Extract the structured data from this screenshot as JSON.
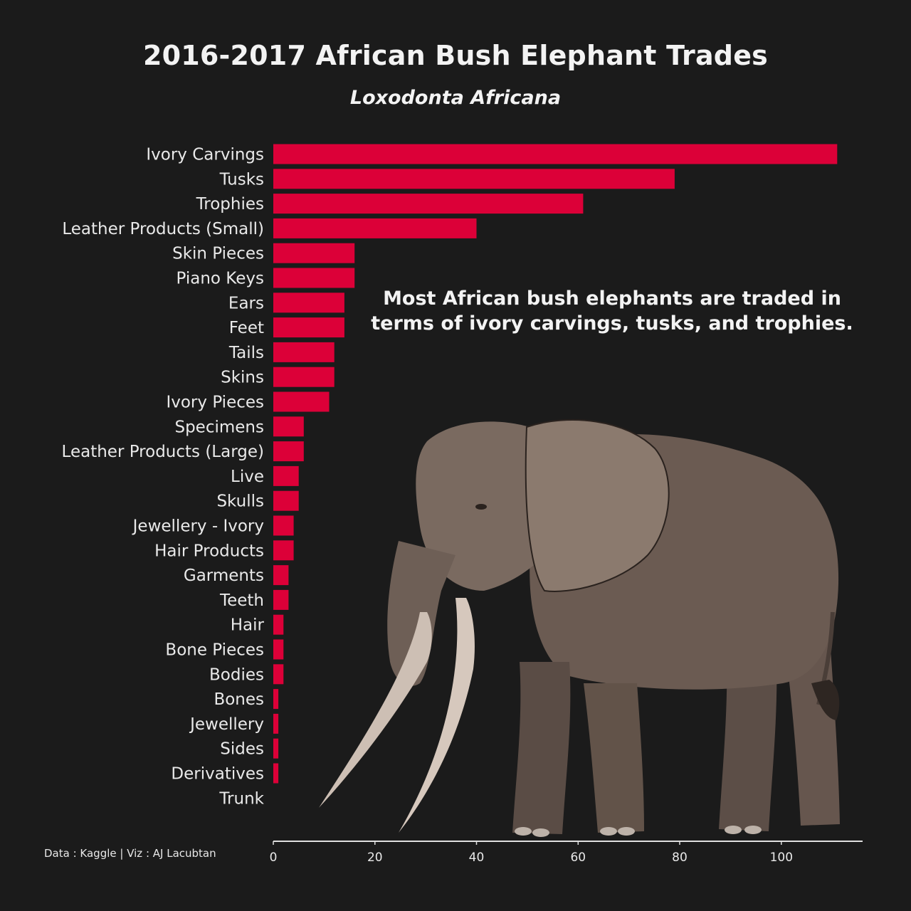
{
  "title": "2016-2017 African Bush Elephant Trades",
  "subtitle": "Loxodonta Africana",
  "annotation": "Most African bush elephants are traded in terms of ivory carvings, tusks, and trophies.",
  "caption": "Data : Kaggle | Viz : AJ Lacubtan",
  "colors": {
    "background": "#1b1b1b",
    "bar": "#dc0038",
    "text": "#f2f2f2",
    "axis": "#e0e0e0"
  },
  "chart_data": {
    "type": "bar",
    "orientation": "horizontal",
    "title": "2016-2017 African Bush Elephant Trades",
    "subtitle": "Loxodonta Africana",
    "xlabel": "",
    "ylabel": "",
    "xlim": [
      0,
      116
    ],
    "xticks": [
      0,
      20,
      40,
      60,
      80,
      100
    ],
    "grid": false,
    "legend": "none",
    "categories": [
      "Ivory Carvings",
      "Tusks",
      "Trophies",
      "Leather Products (Small)",
      "Skin Pieces",
      "Piano Keys",
      "Ears",
      "Feet",
      "Tails",
      "Skins",
      "Ivory Pieces",
      "Specimens",
      "Leather Products (Large)",
      "Live",
      "Skulls",
      "Jewellery - Ivory",
      "Hair Products",
      "Garments",
      "Teeth",
      "Hair",
      "Bone Pieces",
      "Bodies",
      "Bones",
      "Jewellery",
      "Sides",
      "Derivatives",
      "Trunk"
    ],
    "values": [
      111,
      79,
      61,
      40,
      16,
      16,
      14,
      14,
      12,
      12,
      11,
      6,
      6,
      5,
      5,
      4,
      4,
      3,
      3,
      2,
      2,
      2,
      1,
      1,
      1,
      1,
      0
    ]
  }
}
